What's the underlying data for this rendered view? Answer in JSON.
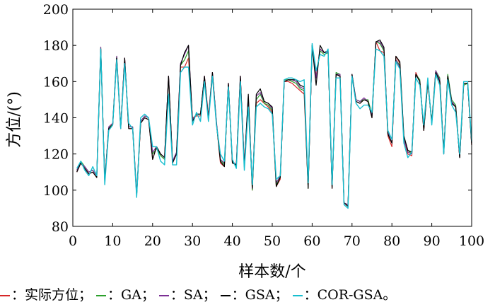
{
  "chart_data": {
    "type": "line",
    "xlabel": "样本数/个",
    "ylabel": "方位/(°)",
    "xlim": [
      0,
      100
    ],
    "ylim": [
      80,
      200
    ],
    "xticks": [
      0,
      10,
      20,
      30,
      40,
      50,
      60,
      70,
      80,
      90,
      100
    ],
    "yticks": [
      80,
      100,
      120,
      140,
      160,
      180,
      200
    ],
    "grid": false,
    "legend_position": "bottom",
    "legend_separator": "：",
    "legend_delimiter": "；",
    "legend_terminator": "。",
    "x": [
      1,
      2,
      3,
      4,
      5,
      6,
      7,
      8,
      9,
      10,
      11,
      12,
      13,
      14,
      15,
      16,
      17,
      18,
      19,
      20,
      21,
      22,
      23,
      24,
      25,
      26,
      27,
      28,
      29,
      30,
      31,
      32,
      33,
      34,
      35,
      36,
      37,
      38,
      39,
      40,
      41,
      42,
      43,
      44,
      45,
      46,
      47,
      48,
      49,
      50,
      51,
      52,
      53,
      54,
      55,
      56,
      57,
      58,
      59,
      60,
      61,
      62,
      63,
      64,
      65,
      66,
      67,
      68,
      69,
      70,
      71,
      72,
      73,
      74,
      75,
      76,
      77,
      78,
      79,
      80,
      81,
      82,
      83,
      84,
      85,
      86,
      87,
      88,
      89,
      90,
      91,
      92,
      93,
      94,
      95,
      96,
      97,
      98,
      99,
      100
    ],
    "series": [
      {
        "name": "实际方位",
        "color": "#d62728",
        "values": [
          110,
          115,
          112,
          109,
          110,
          107,
          178,
          105,
          134,
          136,
          173,
          134,
          173,
          134,
          134,
          97,
          137,
          140,
          139,
          117,
          124,
          120,
          118,
          163,
          115,
          120,
          168,
          168,
          173,
          140,
          141,
          141,
          163,
          141,
          165,
          137,
          115,
          113,
          159,
          115,
          114,
          163,
          114,
          150,
          100,
          148,
          150,
          148,
          146,
          143,
          102,
          106,
          160,
          160,
          159,
          157,
          155,
          153,
          101,
          180,
          163,
          178,
          176,
          177,
          101,
          164,
          163,
          93,
          91,
          164,
          149,
          148,
          150,
          149,
          140,
          182,
          177,
          176,
          130,
          124,
          174,
          170,
          128,
          120,
          119,
          165,
          160,
          133,
          160,
          137,
          166,
          160,
          121,
          163,
          148,
          146,
          118,
          159,
          159,
          125
        ]
      },
      {
        "name": "GA",
        "color": "#2ca02c",
        "values": [
          111,
          116,
          113,
          110,
          111,
          108,
          179,
          105,
          134,
          137,
          174,
          135,
          172,
          135,
          135,
          98,
          138,
          141,
          140,
          120,
          123,
          119,
          117,
          162,
          116,
          120,
          169,
          172,
          177,
          139,
          142,
          142,
          162,
          140,
          164,
          137,
          117,
          114,
          158,
          116,
          113,
          162,
          113,
          151,
          100,
          150,
          153,
          148,
          147,
          144,
          103,
          107,
          161,
          161,
          160,
          159,
          156,
          155,
          101,
          180,
          162,
          177,
          175,
          176,
          102,
          165,
          164,
          93,
          92,
          163,
          150,
          149,
          150,
          150,
          142,
          182,
          181,
          177,
          131,
          126,
          172,
          169,
          129,
          122,
          120,
          164,
          161,
          134,
          160,
          138,
          166,
          162,
          120,
          164,
          150,
          147,
          118,
          158,
          159,
          126
        ]
      },
      {
        "name": "SA",
        "color": "#7b2f94",
        "values": [
          111,
          115,
          113,
          110,
          111,
          108,
          179,
          105,
          135,
          137,
          174,
          135,
          173,
          135,
          135,
          98,
          138,
          141,
          140,
          121,
          124,
          120,
          118,
          163,
          116,
          121,
          170,
          175,
          180,
          139,
          142,
          142,
          163,
          140,
          165,
          138,
          117,
          115,
          159,
          116,
          114,
          163,
          114,
          152,
          101,
          152,
          154,
          149,
          148,
          145,
          104,
          108,
          160,
          161,
          161,
          160,
          157,
          156,
          102,
          179,
          162,
          178,
          176,
          176,
          102,
          164,
          164,
          93,
          92,
          164,
          150,
          149,
          151,
          149,
          141,
          182,
          182,
          178,
          132,
          126,
          172,
          168,
          128,
          121,
          120,
          164,
          160,
          134,
          161,
          137,
          166,
          161,
          120,
          163,
          149,
          146,
          118,
          159,
          159,
          126
        ]
      },
      {
        "name": "GSA",
        "color": "#000000",
        "values": [
          110,
          115,
          112,
          109,
          110,
          107,
          178,
          105,
          134,
          136,
          173,
          134,
          173,
          134,
          134,
          97,
          137,
          140,
          139,
          117,
          124,
          120,
          118,
          163,
          115,
          120,
          169,
          176,
          180,
          138,
          142,
          142,
          163,
          139,
          165,
          137,
          116,
          113,
          159,
          115,
          114,
          163,
          113,
          153,
          101,
          153,
          156,
          149,
          148,
          146,
          102,
          107,
          160,
          161,
          161,
          161,
          158,
          157,
          101,
          180,
          158,
          180,
          176,
          177,
          101,
          164,
          163,
          93,
          91,
          164,
          149,
          148,
          150,
          149,
          140,
          182,
          183,
          179,
          131,
          126,
          174,
          171,
          130,
          122,
          121,
          164,
          160,
          133,
          160,
          137,
          165,
          160,
          121,
          163,
          148,
          146,
          118,
          159,
          159,
          125
        ]
      },
      {
        "name": "COR-GSA",
        "color": "#17becf",
        "values": [
          112,
          116,
          111,
          108,
          113,
          108,
          178,
          103,
          133,
          136,
          172,
          134,
          170,
          137,
          134,
          96,
          140,
          142,
          140,
          124,
          124,
          116,
          114,
          153,
          114,
          114,
          165,
          168,
          168,
          136,
          143,
          138,
          160,
          138,
          163,
          136,
          120,
          116,
          157,
          117,
          112,
          160,
          111,
          146,
          103,
          146,
          148,
          146,
          145,
          142,
          106,
          108,
          161,
          162,
          162,
          161,
          160,
          161,
          104,
          181,
          166,
          175,
          174,
          178,
          103,
          162,
          162,
          92,
          90,
          163,
          148,
          145,
          147,
          147,
          143,
          178,
          177,
          174,
          133,
          128,
          171,
          167,
          126,
          118,
          121,
          162,
          158,
          136,
          162,
          136,
          164,
          158,
          120,
          161,
          147,
          143,
          120,
          160,
          160,
          127
        ]
      }
    ]
  }
}
